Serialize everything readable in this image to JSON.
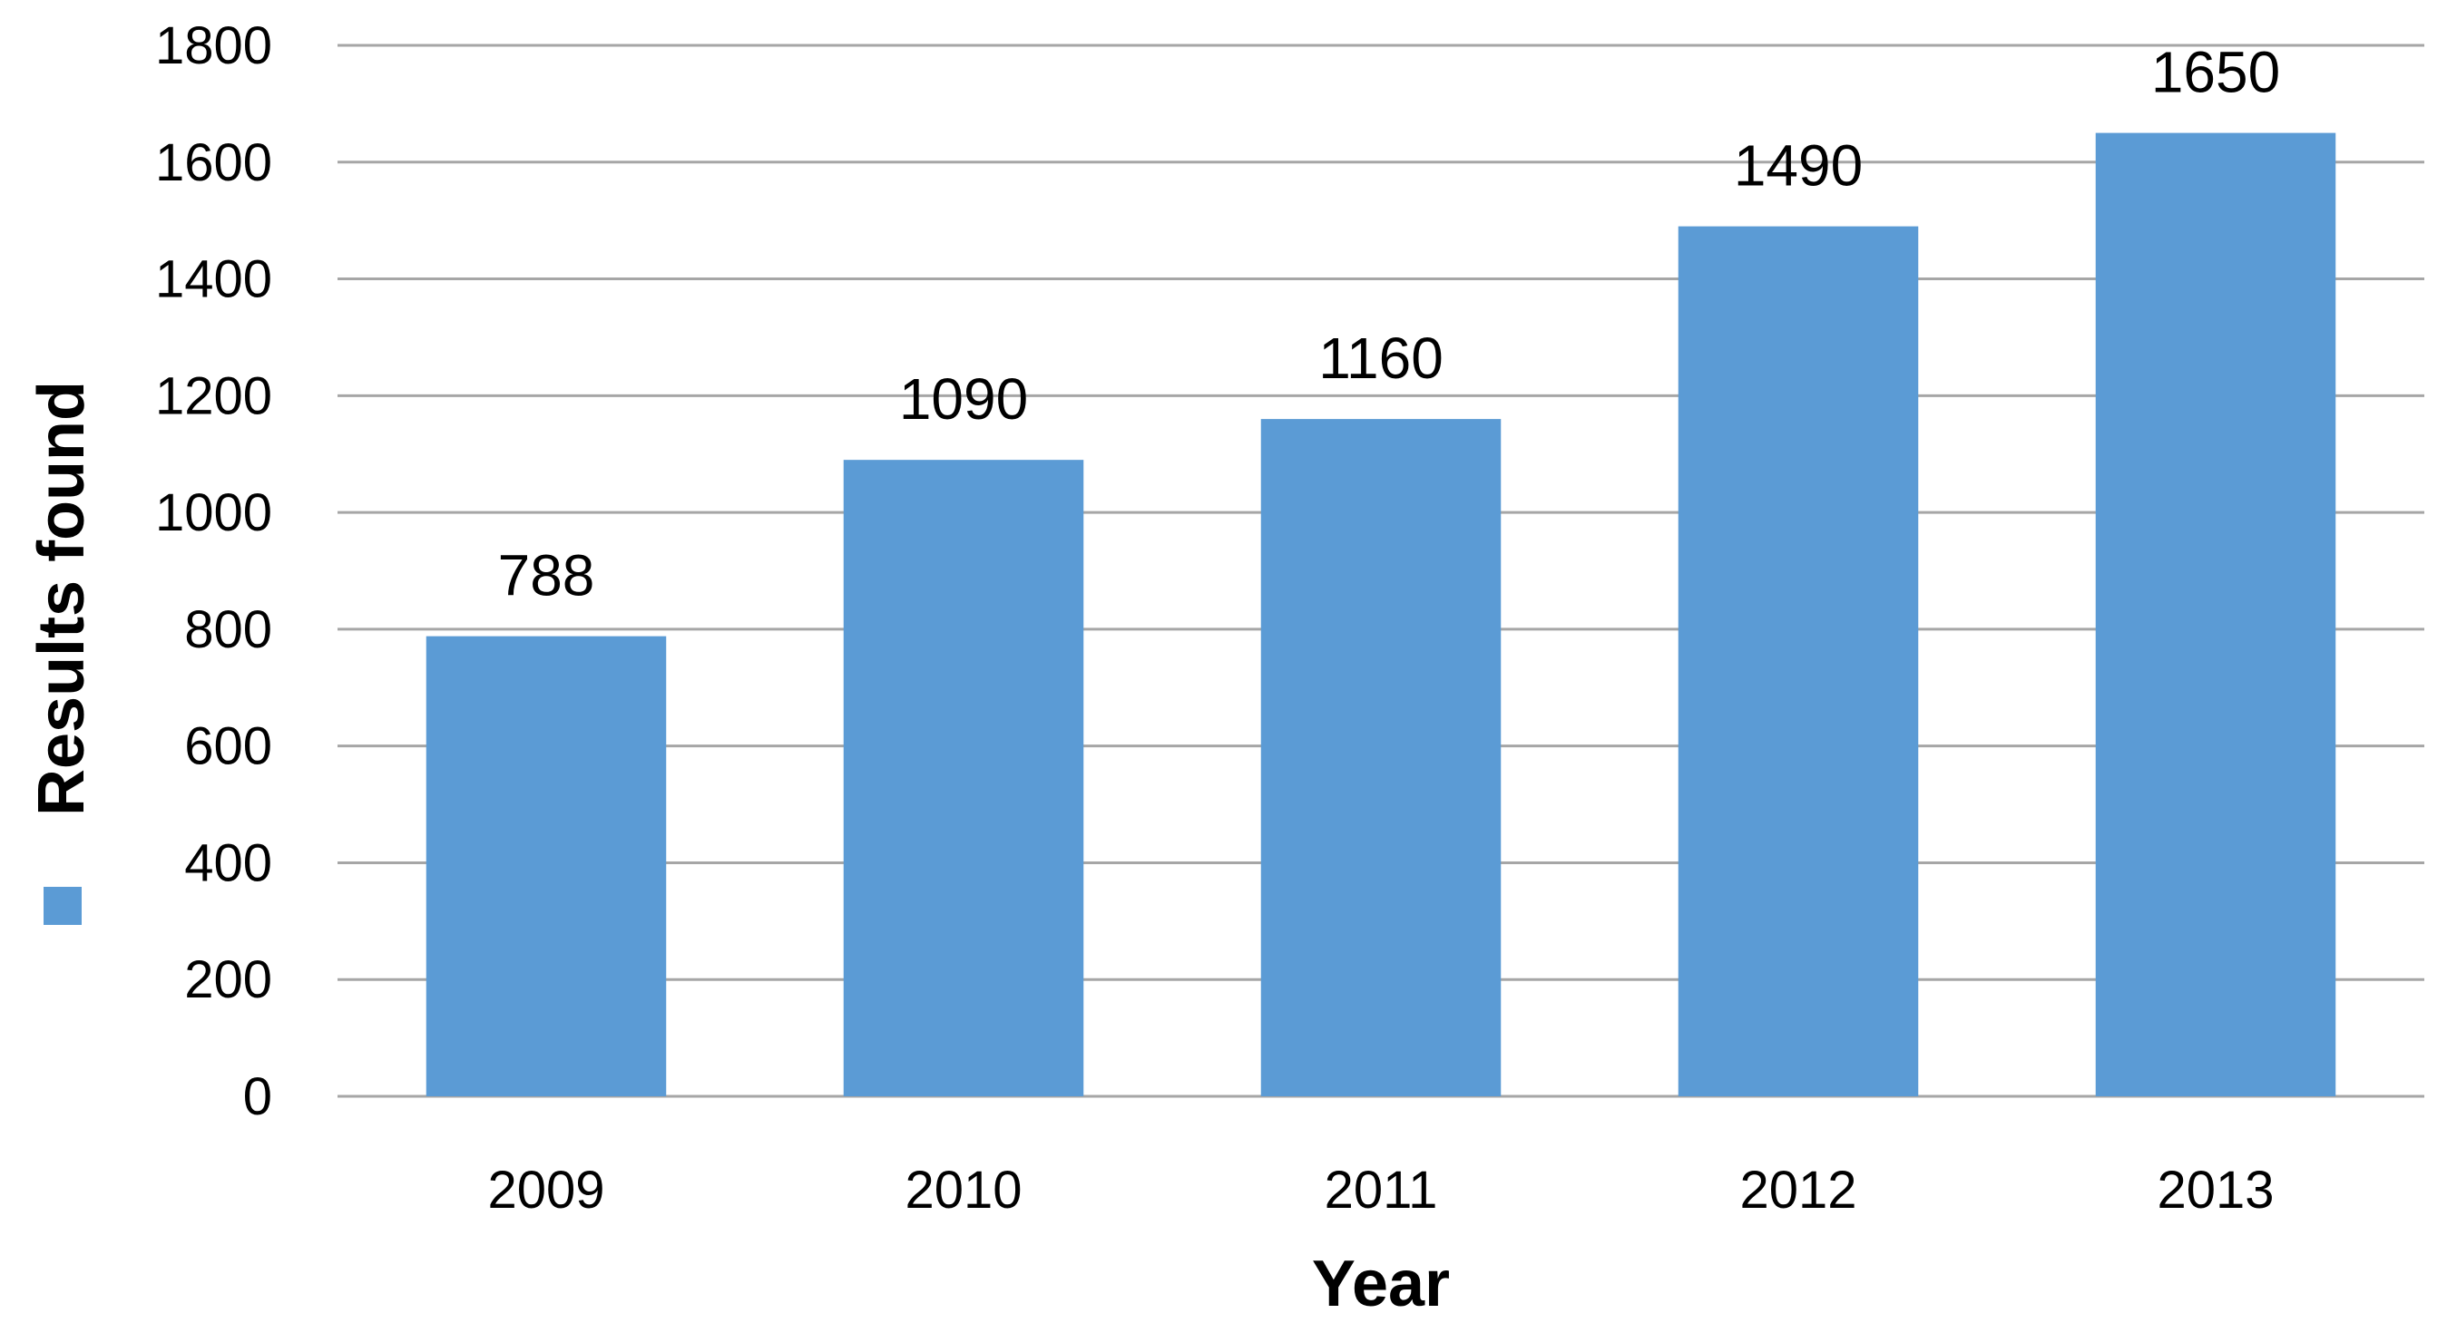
{
  "chart_data": {
    "type": "bar",
    "categories": [
      "2009",
      "2010",
      "2011",
      "2012",
      "2013"
    ],
    "series": [
      {
        "values": [
          788,
          1090,
          1160,
          1490,
          1650
        ],
        "color": "#5b9bd5"
      }
    ],
    "data_labels": [
      "788",
      "1090",
      "1160",
      "1490",
      "1650"
    ],
    "title": "",
    "xlabel": "Year",
    "ylabel": "Results found",
    "ylim": [
      0,
      1800
    ],
    "yticks": [
      0,
      200,
      400,
      600,
      800,
      1000,
      1200,
      1400,
      1600,
      1800
    ],
    "grid": true,
    "legend_position": "left",
    "gridline_color": "#a6a6a6"
  }
}
